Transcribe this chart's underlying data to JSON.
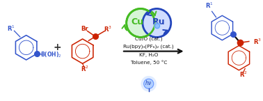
{
  "fig_width": 3.78,
  "fig_height": 1.45,
  "dpi": 100,
  "bg_color": "#ffffff",
  "blue_color": "#3355cc",
  "red_color": "#cc2200",
  "green_color": "#44bb22",
  "dark_blue": "#2244bb",
  "xlim": [
    0,
    10.5
  ],
  "ylim": [
    0,
    3.85
  ],
  "reaction_conditions": [
    "Cu₂O (cat.)",
    "Ru(bpy)₃(PF₆)₂ (cat.)",
    "KF, H₂O",
    "Toluene, 50 °C"
  ],
  "cu_text": "Cu",
  "ru_text": "Ru"
}
